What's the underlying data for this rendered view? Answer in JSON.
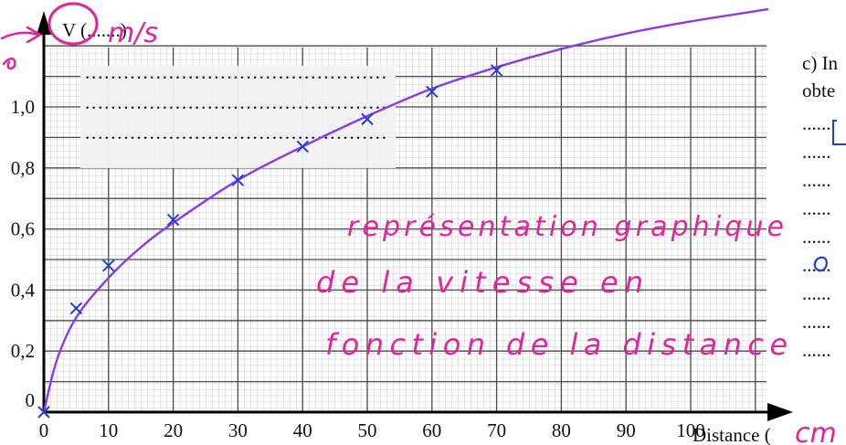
{
  "page": {
    "side_question": "c) In",
    "side_question_cont": "obte",
    "side_dots": [
      "......",
      "......",
      "......",
      "......",
      "......",
      "......",
      "......",
      "......",
      "......"
    ],
    "placeholder_dots": [
      "...............................................",
      "...............................................",
      "..............................................."
    ],
    "colors": {
      "ink": "#111111",
      "curve": "#8a3be6",
      "points": "#1f3fd6",
      "annotation": "#e0259a",
      "grid_fine": "#b9b9b9",
      "grid_major": "#4a4a4a"
    }
  },
  "chart_data": {
    "type": "scatter",
    "title": "",
    "ylabel": "V (.......)",
    "xlabel": "Distance (",
    "xlim": [
      0,
      115
    ],
    "ylim": [
      0,
      1.25
    ],
    "x_ticks": [
      0,
      10,
      20,
      30,
      40,
      50,
      60,
      70,
      80,
      90,
      100
    ],
    "x_tick_labels": [
      "0",
      "10",
      "20",
      "30",
      "40",
      "50",
      "60",
      "70",
      "80",
      "90",
      "100"
    ],
    "y_ticks": [
      0,
      0.2,
      0.4,
      0.6,
      0.8,
      1.0
    ],
    "y_tick_labels": [
      "0",
      "0,2",
      "0,4",
      "0,6",
      "0,8",
      "1,0"
    ],
    "grid": true,
    "points": [
      {
        "x": 0,
        "y": 0.0
      },
      {
        "x": 5,
        "y": 0.34
      },
      {
        "x": 10,
        "y": 0.48
      },
      {
        "x": 20,
        "y": 0.63
      },
      {
        "x": 30,
        "y": 0.76
      },
      {
        "x": 40,
        "y": 0.87
      },
      {
        "x": 50,
        "y": 0.96
      },
      {
        "x": 60,
        "y": 1.05
      },
      {
        "x": 70,
        "y": 1.12
      }
    ],
    "fit_curve": [
      {
        "x": 0,
        "y": 0.0
      },
      {
        "x": 2,
        "y": 0.17
      },
      {
        "x": 5,
        "y": 0.31
      },
      {
        "x": 10,
        "y": 0.44
      },
      {
        "x": 15,
        "y": 0.54
      },
      {
        "x": 20,
        "y": 0.62
      },
      {
        "x": 30,
        "y": 0.76
      },
      {
        "x": 40,
        "y": 0.87
      },
      {
        "x": 50,
        "y": 0.97
      },
      {
        "x": 60,
        "y": 1.06
      },
      {
        "x": 70,
        "y": 1.13
      },
      {
        "x": 80,
        "y": 1.19
      },
      {
        "x": 90,
        "y": 1.24
      },
      {
        "x": 100,
        "y": 1.28
      },
      {
        "x": 112,
        "y": 1.32
      }
    ],
    "handwritten_unit_y": "m/s",
    "handwritten_unit_x": "cm",
    "annotation_lines": [
      "représentation graphique",
      "de la vitesse en",
      "fonction de la distance"
    ]
  }
}
